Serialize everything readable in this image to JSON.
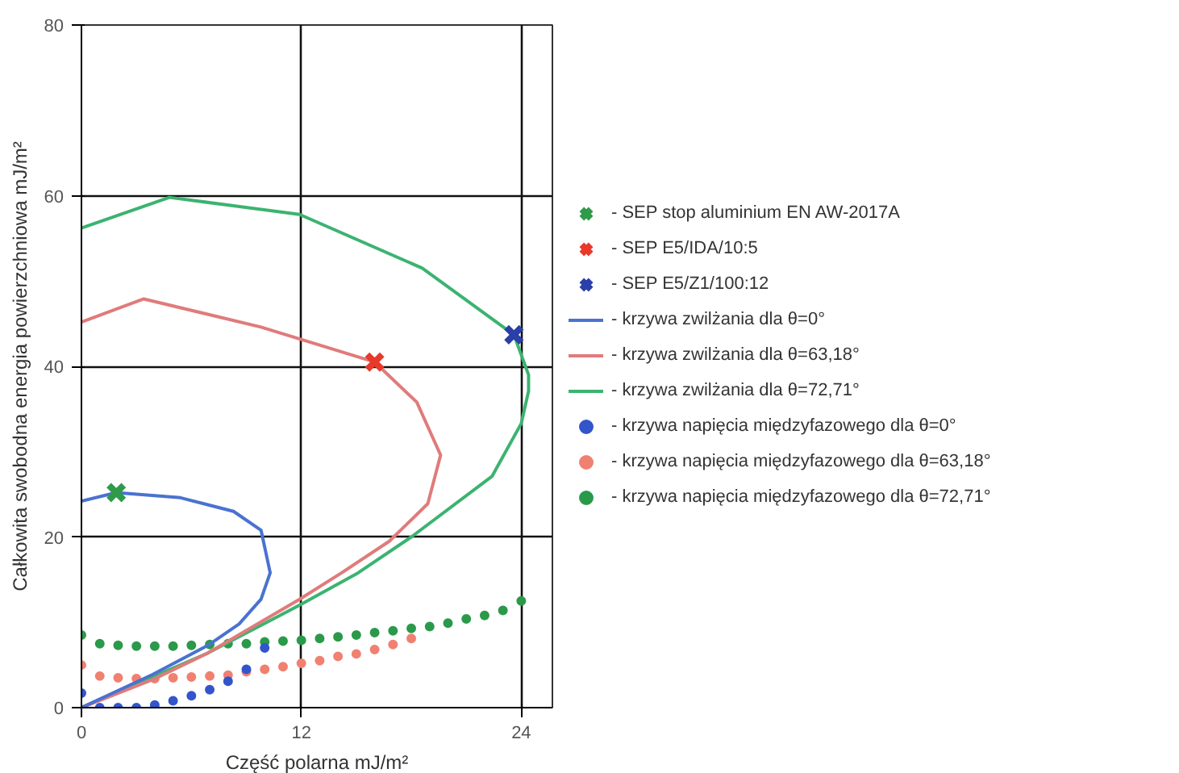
{
  "chart_data": {
    "type": "line",
    "xlabel": "Część polarna mJ/m²",
    "ylabel": "Całkowita swobodna energia powierzchniowa mJ/m²",
    "xlim": [
      0,
      25.7
    ],
    "ylim": [
      0,
      80
    ],
    "xticks": [
      0,
      12,
      24
    ],
    "yticks": [
      0,
      20,
      40,
      60,
      80
    ],
    "grid": true,
    "legend": "right",
    "series": [
      {
        "name": "- SEP stop aluminium EN AW-2017A",
        "type": "scatter",
        "marker": "cross",
        "color": "#2e9a4a",
        "x": [
          1.9
        ],
        "values": [
          25.2
        ]
      },
      {
        "name": "- SEP E5/IDA/10:5",
        "type": "scatter",
        "marker": "cross",
        "color": "#e8392a",
        "x": [
          16.0
        ],
        "values": [
          40.5
        ]
      },
      {
        "name": "- SEP E5/Z1/100:12",
        "type": "scatter",
        "marker": "cross",
        "color": "#2a3fa8",
        "x": [
          23.6
        ],
        "values": [
          43.7
        ]
      },
      {
        "name": "- krzywa zwilżania dla θ=0°",
        "color": "#4a72d0",
        "x": [
          0,
          1.9,
          5.4,
          8.3,
          9.8,
          10.3,
          9.8,
          8.6,
          6.9,
          3.9,
          0
        ],
        "values": [
          24.2,
          25.2,
          24.6,
          23.0,
          20.8,
          15.8,
          12.7,
          9.8,
          7.3,
          3.9,
          0
        ]
      },
      {
        "name": "- krzywa zwilżania dla θ=63,18°",
        "color": "#e07b7b",
        "x": [
          0,
          3.4,
          9.8,
          16.0,
          18.3,
          19.6,
          18.9,
          16.8,
          14.2,
          11.9,
          6.9,
          3.9,
          0
        ],
        "values": [
          45.2,
          47.9,
          44.6,
          40.5,
          35.8,
          29.6,
          23.9,
          19.5,
          15.8,
          12.7,
          6.4,
          3.3,
          0
        ]
      },
      {
        "name": "- krzywa zwilżania dla θ=72,71°",
        "color": "#3cb371",
        "x": [
          0,
          4.8,
          11.9,
          18.6,
          23.6,
          24.4,
          24.4,
          24.0,
          22.4,
          18.0,
          15.1,
          11.9,
          6.9,
          0
        ],
        "values": [
          56.2,
          59.8,
          57.8,
          51.5,
          43.7,
          39.0,
          37.1,
          33.3,
          27.1,
          20.0,
          15.8,
          12.0,
          6.4,
          0
        ]
      },
      {
        "name": "- krzywa napięcia międzyfazowego dla θ=0°",
        "type": "scatter",
        "marker": "circle",
        "color": "#3355cc",
        "x": [
          0,
          1,
          2,
          3,
          4,
          5,
          6,
          7,
          8,
          9,
          10
        ],
        "values": [
          1.7,
          0,
          0,
          0,
          0.3,
          0.8,
          1.4,
          2.1,
          3.1,
          4.5,
          7.0
        ]
      },
      {
        "name": "- krzywa napięcia międzyfazowego dla θ=63,18°",
        "type": "scatter",
        "marker": "circle",
        "color": "#f08070",
        "x": [
          0,
          1,
          2,
          3,
          4,
          5,
          6,
          7,
          8,
          9,
          10,
          11,
          12,
          13,
          14,
          15,
          16,
          17,
          18
        ],
        "values": [
          5.0,
          3.7,
          3.5,
          3.4,
          3.4,
          3.5,
          3.6,
          3.7,
          3.8,
          4.2,
          4.5,
          4.8,
          5.2,
          5.5,
          6.0,
          6.3,
          6.8,
          7.4,
          8.1
        ]
      },
      {
        "name": "- krzywa napięcia międzyfazowego dla θ=72,71°",
        "type": "scatter",
        "marker": "circle",
        "color": "#2a9a4a",
        "x": [
          0,
          1,
          2,
          3,
          4,
          5,
          6,
          7,
          8,
          9,
          10,
          11,
          12,
          13,
          14,
          15,
          16,
          17,
          18,
          19,
          20,
          21,
          22,
          23,
          24
        ],
        "values": [
          8.5,
          7.5,
          7.3,
          7.2,
          7.2,
          7.2,
          7.3,
          7.4,
          7.5,
          7.5,
          7.7,
          7.8,
          7.9,
          8.1,
          8.3,
          8.5,
          8.8,
          9.0,
          9.3,
          9.5,
          9.9,
          10.4,
          10.8,
          11.4,
          12.5
        ]
      }
    ]
  }
}
